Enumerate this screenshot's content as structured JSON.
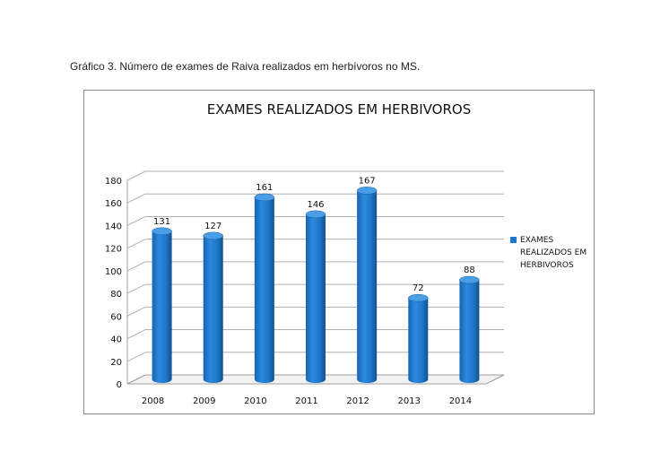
{
  "caption": "Gráfico 3. Número de exames de Raiva realizados em herbívoros no MS.",
  "chart_data": {
    "type": "bar",
    "title": "EXAMES REALIZADOS EM HERBIVOROS",
    "categories": [
      "2008",
      "2009",
      "2010",
      "2011",
      "2012",
      "2013",
      "2014"
    ],
    "series": [
      {
        "name": "EXAMES REALIZADOS EM HERBIVOROS",
        "values": [
          131,
          127,
          161,
          146,
          167,
          72,
          88
        ]
      }
    ],
    "ylim": [
      0,
      180
    ],
    "yticks": [
      "0",
      "20",
      "40",
      "60",
      "80",
      "100",
      "120",
      "140",
      "160",
      "180"
    ],
    "grid": true,
    "data_labels": true,
    "legend_position": "right",
    "bar_color": "#1f77c9"
  }
}
